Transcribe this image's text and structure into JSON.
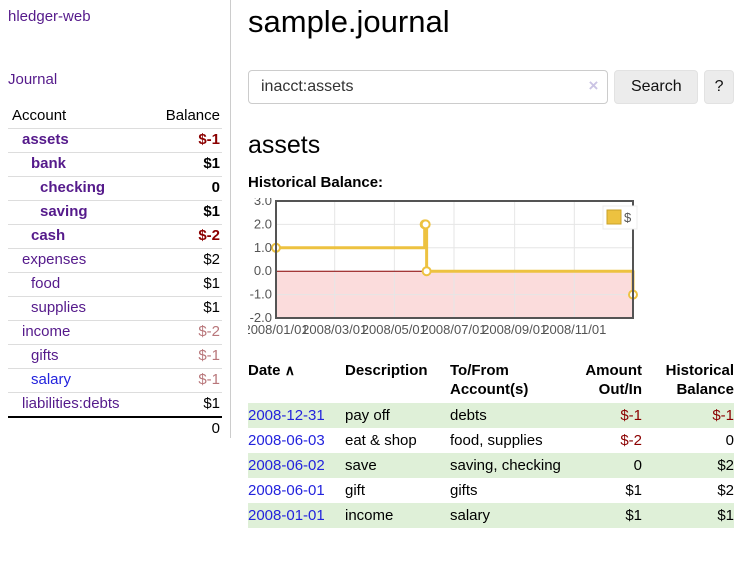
{
  "colors": {
    "link_purple": "#551a8b",
    "link_blue": "#2323dd",
    "negative_strong": "#8b0000",
    "negative_muted": "#b8767a",
    "row_stripe_green": "#dff0d8"
  },
  "sidebar": {
    "brand": "hledger-web",
    "journal_label": "Journal",
    "accounts_table": {
      "headers": {
        "account": "Account",
        "balance": "Balance"
      },
      "rows": [
        {
          "name": "assets",
          "balance": "$-1"
        },
        {
          "name": "bank",
          "balance": "$1"
        },
        {
          "name": "checking",
          "balance": "0"
        },
        {
          "name": "saving",
          "balance": "$1"
        },
        {
          "name": "cash",
          "balance": "$-2"
        },
        {
          "name": "expenses",
          "balance": "$2"
        },
        {
          "name": "food",
          "balance": "$1"
        },
        {
          "name": "supplies",
          "balance": "$1"
        },
        {
          "name": "income",
          "balance": "$-2"
        },
        {
          "name": "gifts",
          "balance": "$-1"
        },
        {
          "name": "salary",
          "balance": "$-1"
        },
        {
          "name": "liabilities:debts",
          "balance": "$1"
        }
      ],
      "total": "0"
    }
  },
  "header": {
    "title": "sample.journal"
  },
  "search": {
    "query": "inacct:assets",
    "clear_icon": "×",
    "search_label": "Search",
    "help_label": "?"
  },
  "account_page": {
    "heading": "assets",
    "chart_title": "Historical Balance:"
  },
  "chart_data": {
    "type": "line",
    "title": "Historical Balance:",
    "step": true,
    "xlim_days": [
      0,
      365
    ],
    "ylim": [
      -2,
      3
    ],
    "grid": true,
    "legend_position": "top-right",
    "legend_label": "$",
    "series": [
      {
        "name": "$",
        "points": [
          {
            "date": "2008-01-01",
            "day": 0,
            "y": 1
          },
          {
            "date": "2008-06-01",
            "day": 152,
            "y": 2
          },
          {
            "date": "2008-06-02",
            "day": 153,
            "y": 2
          },
          {
            "date": "2008-06-03",
            "day": 154,
            "y": 0
          },
          {
            "date": "2008-12-31",
            "day": 365,
            "y": -1
          }
        ]
      }
    ],
    "x_ticks": [
      {
        "day": 0,
        "label": "2008/01/01"
      },
      {
        "day": 60,
        "label": "2008/03/01"
      },
      {
        "day": 121,
        "label": "2008/05/01"
      },
      {
        "day": 182,
        "label": "2008/07/01"
      },
      {
        "day": 244,
        "label": "2008/09/01"
      },
      {
        "day": 305,
        "label": "2008/11/01"
      }
    ],
    "y_ticks": [
      {
        "v": 3,
        "label": "3.0"
      },
      {
        "v": 2,
        "label": "2.0"
      },
      {
        "v": 1,
        "label": "1.0"
      },
      {
        "v": 0,
        "label": "0.0"
      },
      {
        "v": -1,
        "label": "-1.0"
      },
      {
        "v": -2,
        "label": "-2.0"
      }
    ],
    "colors": {
      "line": "#edc240",
      "line_border": "#c9a22a",
      "marker_fill": "#ffffff",
      "negative_fill": "#fbdcdc",
      "zero_line": "#8b0000",
      "grid": "#e6e6e6",
      "border": "#545454",
      "tick_text": "#545454"
    }
  },
  "register_table": {
    "headers": {
      "date": "Date",
      "description": "Description",
      "accounts": "To/From Account(s)",
      "amount": "Amount Out/In",
      "balance": "Historical Balance"
    },
    "sort_icon": "∧",
    "rows": [
      {
        "date": "2008-12-31",
        "description": "pay off",
        "accounts": "debts",
        "amount": "$-1",
        "balance": "$-1"
      },
      {
        "date": "2008-06-03",
        "description": "eat & shop",
        "accounts": "food, supplies",
        "amount": "$-2",
        "balance": "0"
      },
      {
        "date": "2008-06-02",
        "description": "save",
        "accounts": "saving, checking",
        "amount": "0",
        "balance": "$2"
      },
      {
        "date": "2008-06-01",
        "description": "gift",
        "accounts": "gifts",
        "amount": "$1",
        "balance": "$2"
      },
      {
        "date": "2008-01-01",
        "description": "income",
        "accounts": "salary",
        "amount": "$1",
        "balance": "$1"
      }
    ]
  }
}
